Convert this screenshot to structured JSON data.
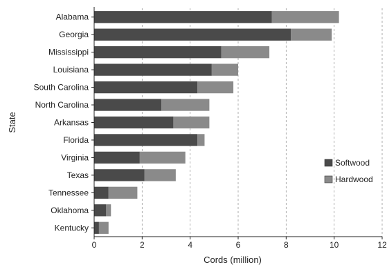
{
  "chart_data": {
    "type": "bar",
    "orientation": "horizontal",
    "stacked": true,
    "categories": [
      "Alabama",
      "Georgia",
      "Mississippi",
      "Louisiana",
      "South Carolina",
      "North Carolina",
      "Arkansas",
      "Florida",
      "Virginia",
      "Texas",
      "Tennessee",
      "Oklahoma",
      "Kentucky"
    ],
    "series": [
      {
        "name": "Softwood",
        "color": "#4a4a4a",
        "values": [
          7.4,
          8.2,
          5.3,
          4.9,
          4.3,
          2.8,
          3.3,
          4.3,
          1.9,
          2.1,
          0.6,
          0.5,
          0.2
        ]
      },
      {
        "name": "Hardwood",
        "color": "#8a8a8a",
        "values": [
          2.8,
          1.7,
          2.0,
          1.1,
          1.5,
          2.0,
          1.5,
          0.3,
          1.9,
          1.3,
          1.2,
          0.2,
          0.4
        ]
      }
    ],
    "xlabel": "Cords (million)",
    "ylabel": "State",
    "xlim": [
      0,
      12
    ],
    "xticks": [
      "0",
      "2",
      "4",
      "6",
      "8",
      "10",
      "12"
    ],
    "grid": "vertical dashed",
    "legend_position": "right"
  }
}
